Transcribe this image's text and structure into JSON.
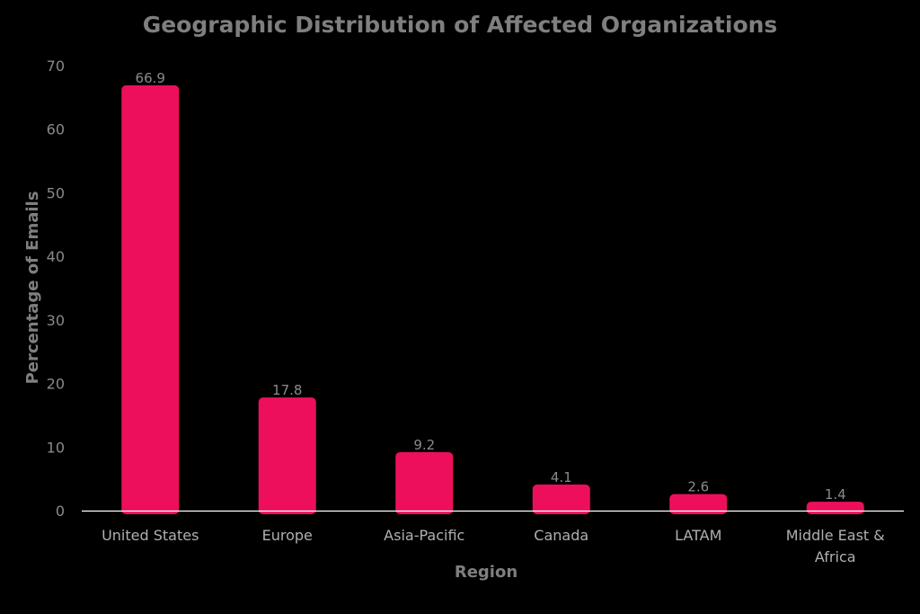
{
  "chart_data": {
    "type": "bar",
    "title": "Geographic Distribution of Affected Organizations",
    "xlabel": "Region",
    "ylabel": "Percentage of Emails",
    "categories": [
      [
        "United States"
      ],
      [
        "Europe"
      ],
      [
        "Asia-Pacific"
      ],
      [
        "Canada"
      ],
      [
        "LATAM"
      ],
      [
        "Middle East &",
        "Africa"
      ]
    ],
    "values": [
      66.9,
      17.8,
      9.2,
      4.1,
      2.6,
      1.4
    ],
    "data_labels": [
      "66.9",
      "17.8",
      "9.2",
      "4.1",
      "2.6",
      "1.4"
    ],
    "ylim": [
      0,
      70
    ],
    "yticks": [
      0,
      10,
      20,
      30,
      40,
      50,
      60,
      70
    ],
    "grid": false,
    "legend": "none",
    "colors": {
      "bar": "#ee0f5c",
      "axis": "#ffffff",
      "text": "#7f7f7f",
      "background": "#000000"
    }
  }
}
